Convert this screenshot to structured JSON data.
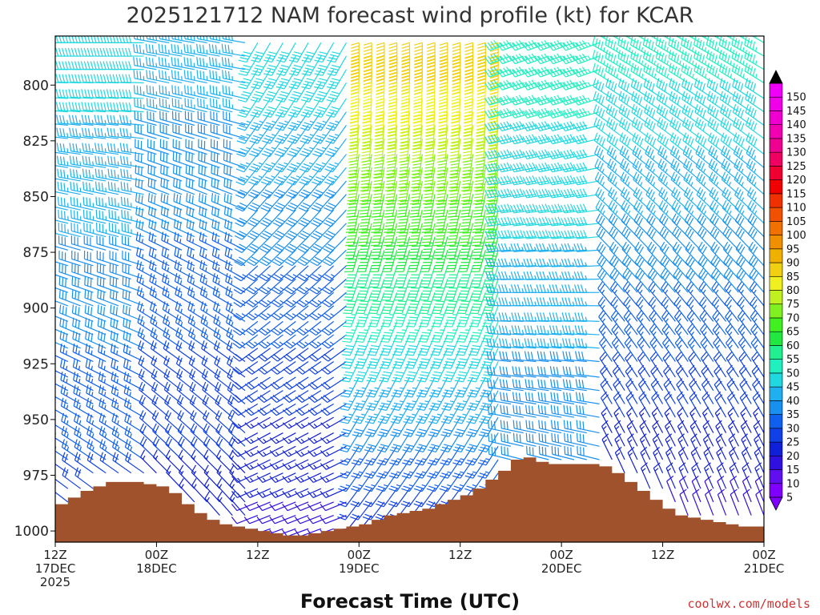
{
  "chart_data": {
    "type": "wind_barbs",
    "title": "2025121712 NAM forecast wind profile (kt) for KCAR",
    "xlabel": "Forecast Time (UTC)",
    "credit": "coolwx.com/models",
    "y_axis": {
      "quantity": "pressure (hPa)",
      "inverted": true,
      "range": [
        1005,
        778
      ],
      "ticks": [
        "800",
        "825",
        "850",
        "875",
        "900",
        "925",
        "950",
        "975",
        "1000"
      ]
    },
    "x_axis": {
      "range_hours": [
        0,
        84
      ],
      "ticks": [
        {
          "hour": 0,
          "lines": [
            "12Z",
            "17DEC",
            "2025"
          ]
        },
        {
          "hour": 12,
          "lines": [
            "00Z",
            "18DEC"
          ]
        },
        {
          "hour": 24,
          "lines": [
            "12Z"
          ]
        },
        {
          "hour": 36,
          "lines": [
            "00Z",
            "19DEC"
          ]
        },
        {
          "hour": 48,
          "lines": [
            "12Z"
          ]
        },
        {
          "hour": 60,
          "lines": [
            "00Z",
            "20DEC"
          ]
        },
        {
          "hour": 72,
          "lines": [
            "12Z"
          ]
        },
        {
          "hour": 84,
          "lines": [
            "00Z",
            "21DEC"
          ]
        }
      ]
    },
    "colorbar": {
      "unit": "kt",
      "levels": [
        "5",
        "10",
        "15",
        "20",
        "25",
        "30",
        "35",
        "40",
        "45",
        "50",
        "55",
        "60",
        "65",
        "70",
        "75",
        "80",
        "85",
        "90",
        "95",
        "100",
        "105",
        "110",
        "115",
        "120",
        "125",
        "130",
        "135",
        "140",
        "145",
        "150"
      ],
      "colors": [
        "#8000ff",
        "#6010f0",
        "#3010e0",
        "#1020d8",
        "#1040e8",
        "#1060f0",
        "#1890f0",
        "#20b0f0",
        "#20d8e0",
        "#20f0c0",
        "#20f090",
        "#20e840",
        "#40f020",
        "#80f020",
        "#c0f020",
        "#f0f020",
        "#f0d010",
        "#f0b000",
        "#f09000",
        "#f07000",
        "#f05000",
        "#f03000",
        "#f00000",
        "#f00030",
        "#f00060",
        "#f00090",
        "#f000b0",
        "#f000d0",
        "#f000e8",
        "#f000f8"
      ],
      "extend": "both"
    },
    "terrain": {
      "color": "#a0522d",
      "surface_pressure_hpa": [
        [
          0,
          988
        ],
        [
          0.75,
          988
        ],
        [
          1.5,
          985
        ],
        [
          3,
          982
        ],
        [
          4.5,
          980
        ],
        [
          6,
          978
        ],
        [
          7.5,
          978
        ],
        [
          9,
          978
        ],
        [
          10.5,
          979
        ],
        [
          12,
          980
        ],
        [
          13.5,
          983
        ],
        [
          15,
          988
        ],
        [
          16.5,
          992
        ],
        [
          18,
          995
        ],
        [
          19.5,
          997
        ],
        [
          21,
          998
        ],
        [
          22.5,
          999
        ],
        [
          24,
          1000
        ],
        [
          25.5,
          1001
        ],
        [
          27,
          1002
        ],
        [
          28.5,
          1002
        ],
        [
          30,
          1001
        ],
        [
          31.5,
          1000
        ],
        [
          33,
          999
        ],
        [
          34.5,
          998
        ],
        [
          36,
          997
        ],
        [
          37.5,
          995
        ],
        [
          39,
          993
        ],
        [
          40.5,
          992
        ],
        [
          42,
          991
        ],
        [
          43.5,
          990
        ],
        [
          45,
          988
        ],
        [
          46.5,
          986
        ],
        [
          48,
          984
        ],
        [
          49.5,
          981
        ],
        [
          51,
          977
        ],
        [
          52.5,
          973
        ],
        [
          54,
          968
        ],
        [
          55.5,
          967
        ],
        [
          57,
          969
        ],
        [
          58.5,
          970
        ],
        [
          60,
          970
        ],
        [
          61.5,
          970
        ],
        [
          63,
          970
        ],
        [
          64.5,
          971
        ],
        [
          66,
          974
        ],
        [
          67.5,
          978
        ],
        [
          69,
          982
        ],
        [
          70.5,
          986
        ],
        [
          72,
          990
        ],
        [
          73.5,
          993
        ],
        [
          75,
          994
        ],
        [
          76.5,
          995
        ],
        [
          78,
          996
        ],
        [
          79.5,
          997
        ],
        [
          81,
          998
        ],
        [
          82.5,
          998
        ],
        [
          84,
          999
        ]
      ]
    },
    "barb_grid": {
      "time_step_hours": 1.5,
      "pressure_levels_hpa": [
        781,
        787,
        793,
        799,
        806,
        812,
        818,
        824,
        831,
        837,
        843,
        849,
        856,
        862,
        868,
        874,
        881,
        887,
        893,
        899,
        906,
        912,
        918,
        924,
        931,
        937,
        943,
        949,
        956,
        962,
        968,
        974,
        981,
        987,
        993,
        999
      ]
    },
    "wind_regimes": [
      {
        "hours": [
          0,
          12
        ],
        "direction_deg": 290,
        "speed_kt": {
          "upper": 40,
          "lower": 20
        }
      },
      {
        "hours": [
          12,
          24
        ],
        "direction_deg": 300,
        "speed_kt": {
          "upper": 35,
          "lower": 15
        }
      },
      {
        "hours": [
          24,
          36
        ],
        "direction_deg": 230,
        "speed_kt": {
          "upper": 40,
          "lower": 10
        }
      },
      {
        "hours": [
          36,
          54
        ],
        "direction_deg": 200,
        "speed_kt": {
          "upper": 80,
          "lower": 15
        }
      },
      {
        "hours": [
          54,
          66
        ],
        "direction_deg": 270,
        "speed_kt": {
          "upper": 45,
          "lower": 25
        }
      },
      {
        "hours": [
          66,
          84
        ],
        "direction_deg": 320,
        "speed_kt": {
          "upper": 45,
          "lower": 10
        }
      }
    ]
  }
}
